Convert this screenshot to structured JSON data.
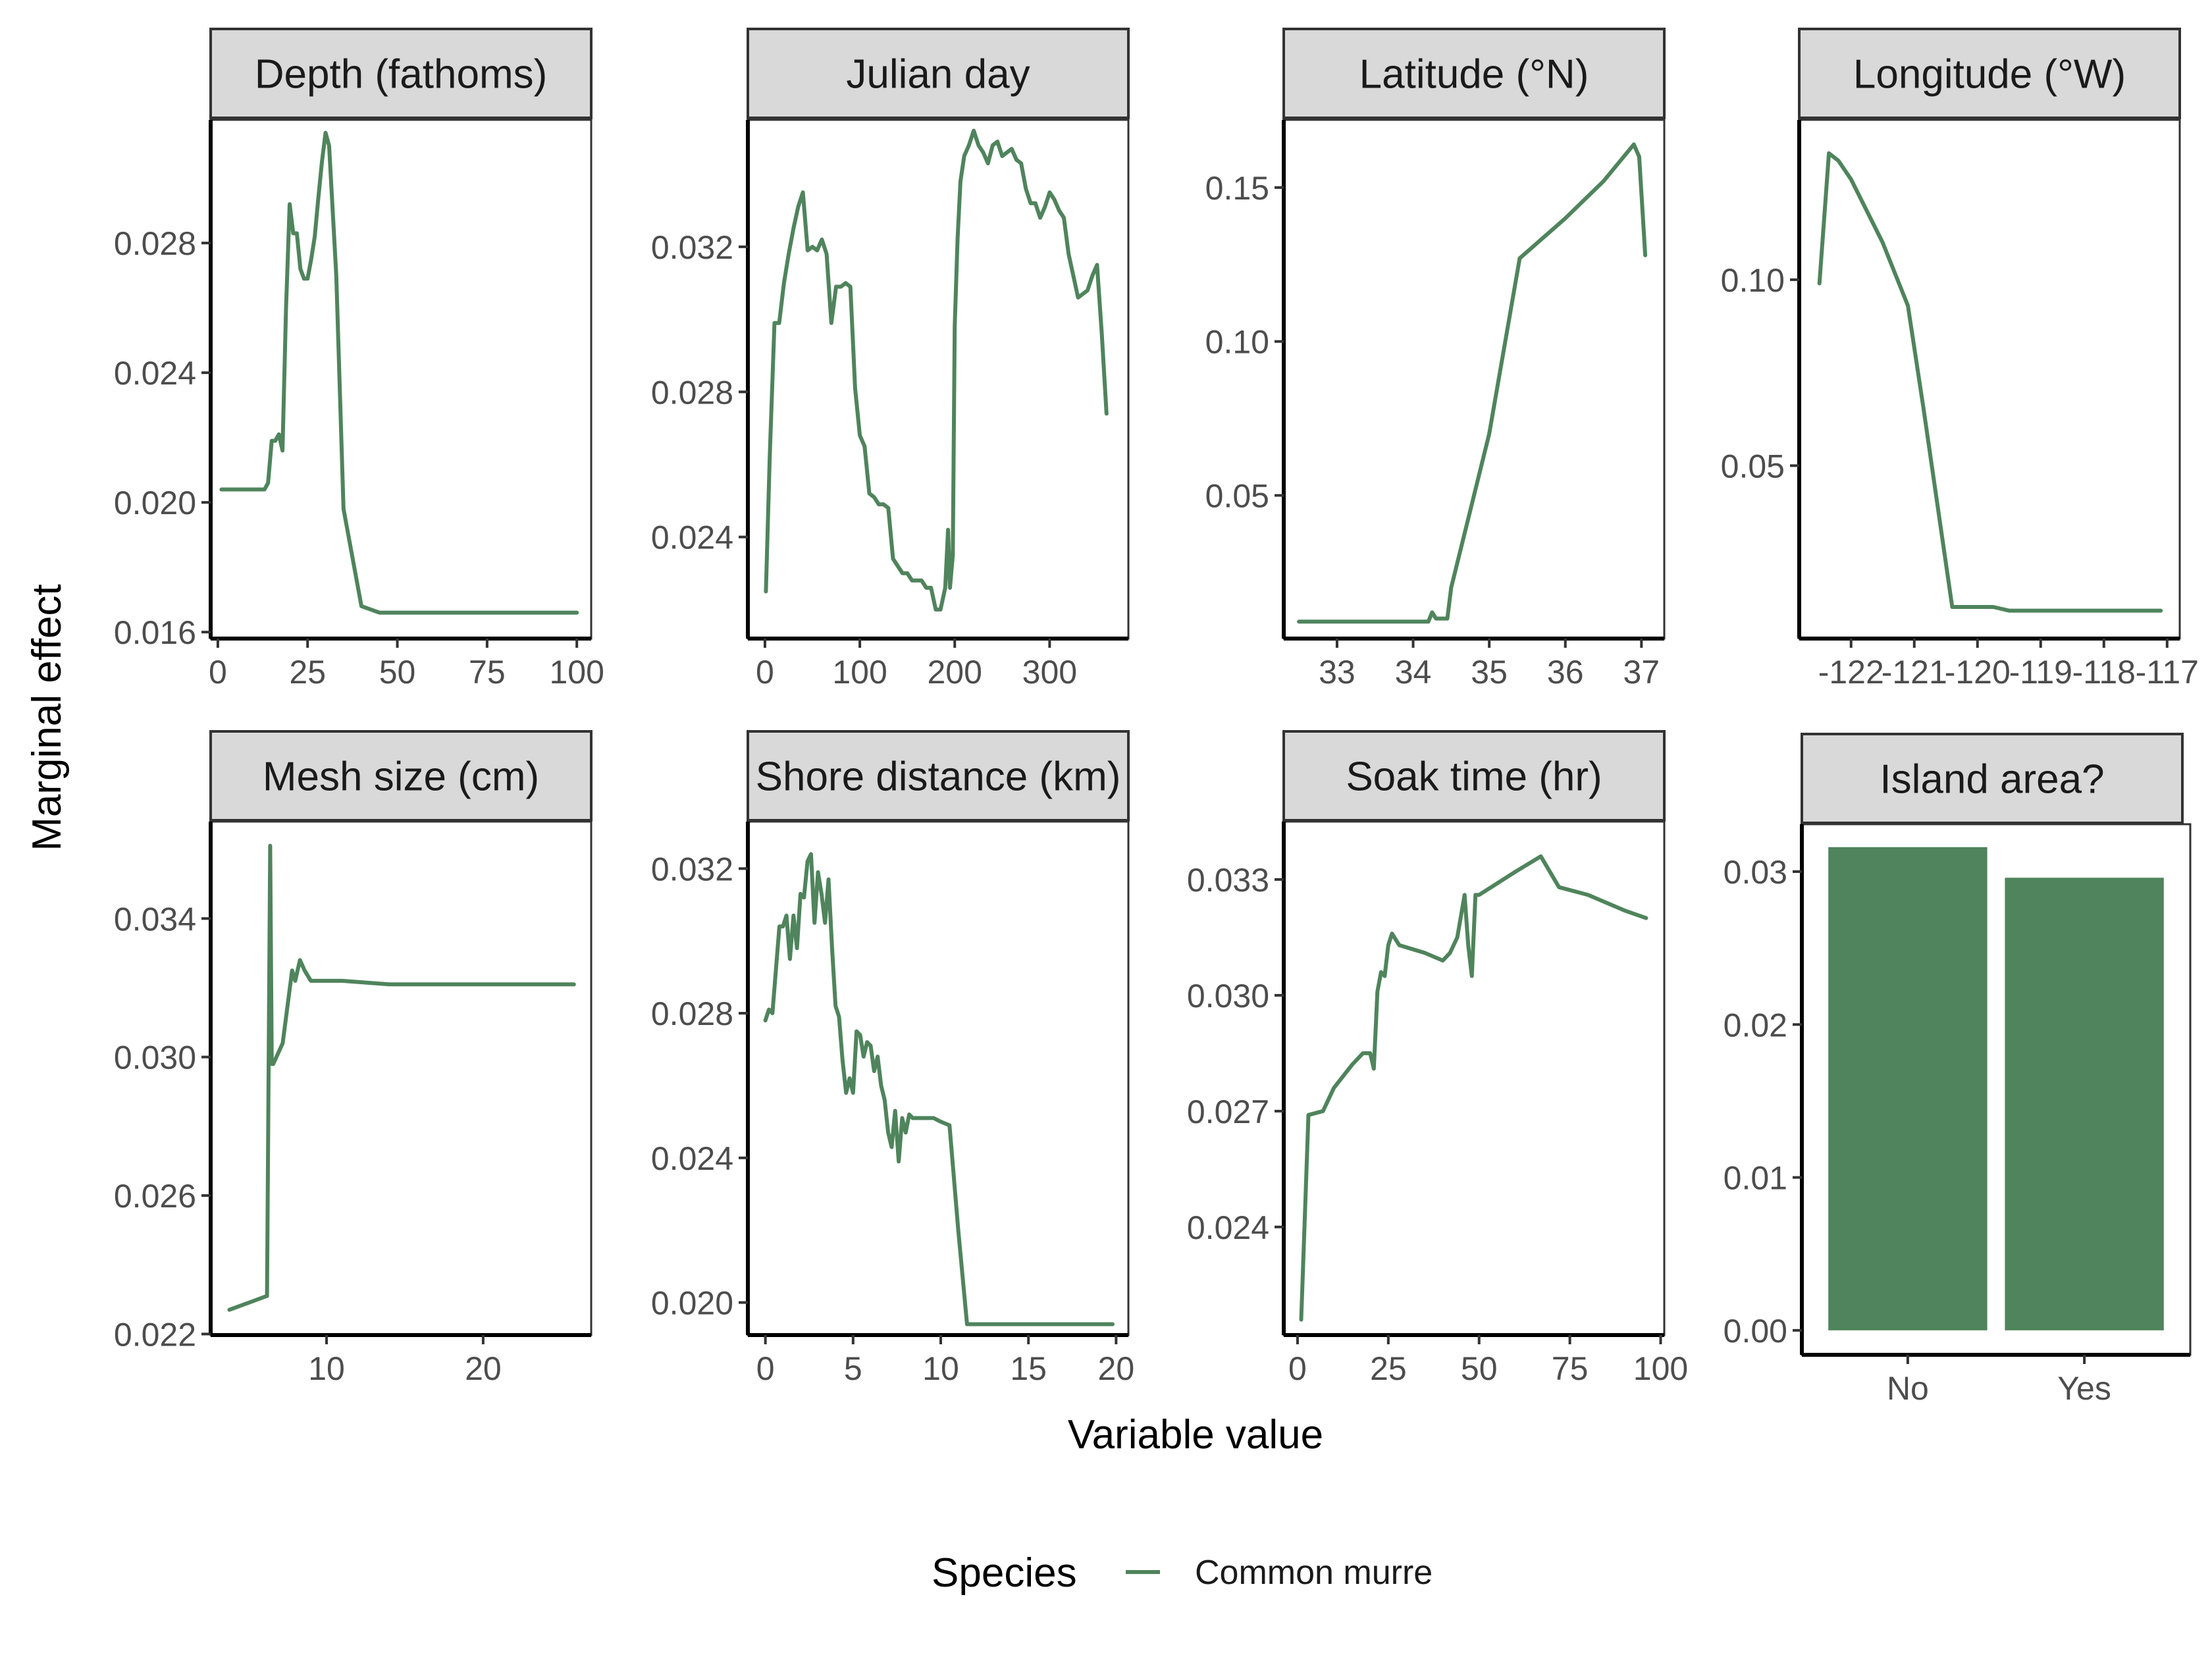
{
  "figure": {
    "x_axis_title": "Variable value",
    "y_axis_title": "Marginal effect",
    "legend": {
      "title": "Species",
      "entries": [
        {
          "label": "Common murre",
          "color": "#4F845C"
        }
      ],
      "position": "bottom"
    }
  },
  "chart_data": [
    {
      "type": "line",
      "title": "Depth (fathoms)",
      "xlim": [
        -2,
        104
      ],
      "ylim": [
        0.0158,
        0.0318
      ],
      "xticks": [
        0,
        25,
        50,
        75,
        100
      ],
      "xtick_labels": [
        "0",
        "25",
        "50",
        "75",
        "100"
      ],
      "yticks": [
        0.016,
        0.02,
        0.024,
        0.028
      ],
      "ytick_labels": [
        "0.016",
        "0.020",
        "0.024",
        "0.028"
      ],
      "grid": false,
      "series": [
        {
          "name": "Common murre",
          "color": "#4F845C",
          "x": [
            1,
            5,
            10,
            13,
            14,
            15,
            16,
            17,
            18,
            19,
            20,
            21,
            22,
            23,
            24,
            25,
            26,
            27,
            28,
            29,
            30,
            31,
            33,
            35,
            40,
            45,
            50,
            60,
            75,
            90,
            100
          ],
          "y": [
            0.0204,
            0.0204,
            0.0204,
            0.0204,
            0.0206,
            0.0219,
            0.0219,
            0.0221,
            0.0216,
            0.026,
            0.0292,
            0.0283,
            0.0283,
            0.0272,
            0.0269,
            0.0269,
            0.0275,
            0.0282,
            0.0294,
            0.0305,
            0.0314,
            0.031,
            0.027,
            0.0198,
            0.0168,
            0.0166,
            0.0166,
            0.0166,
            0.0166,
            0.0166,
            0.0166
          ]
        }
      ]
    },
    {
      "type": "line",
      "title": "Julian day",
      "xlim": [
        -18,
        383
      ],
      "ylim": [
        0.0212,
        0.0355
      ],
      "xticks": [
        0,
        100,
        200,
        300
      ],
      "xtick_labels": [
        "0",
        "100",
        "200",
        "300"
      ],
      "yticks": [
        0.024,
        0.028,
        0.032
      ],
      "ytick_labels": [
        "0.024",
        "0.028",
        "0.032"
      ],
      "grid": false,
      "series": [
        {
          "name": "Common murre",
          "color": "#4F845C",
          "x": [
            1,
            5,
            10,
            15,
            20,
            25,
            30,
            35,
            40,
            45,
            50,
            55,
            60,
            65,
            70,
            75,
            80,
            85,
            90,
            95,
            100,
            105,
            110,
            115,
            120,
            125,
            130,
            135,
            140,
            145,
            150,
            155,
            160,
            165,
            170,
            175,
            180,
            185,
            190,
            193,
            195,
            198,
            200,
            203,
            206,
            210,
            215,
            220,
            225,
            230,
            235,
            240,
            245,
            250,
            255,
            260,
            265,
            270,
            275,
            280,
            285,
            290,
            295,
            300,
            305,
            310,
            315,
            320,
            325,
            330,
            335,
            340,
            345,
            350,
            355,
            360
          ],
          "y": [
            0.0225,
            0.0262,
            0.0299,
            0.0299,
            0.031,
            0.0318,
            0.0325,
            0.0331,
            0.0335,
            0.0319,
            0.032,
            0.0319,
            0.0322,
            0.0318,
            0.0299,
            0.0309,
            0.0309,
            0.031,
            0.0309,
            0.0281,
            0.0268,
            0.0265,
            0.0252,
            0.0251,
            0.0249,
            0.0249,
            0.0248,
            0.0234,
            0.0232,
            0.023,
            0.023,
            0.0228,
            0.0228,
            0.0228,
            0.0226,
            0.0226,
            0.022,
            0.022,
            0.0226,
            0.0242,
            0.0226,
            0.0235,
            0.0298,
            0.0322,
            0.0338,
            0.0345,
            0.0348,
            0.0352,
            0.0348,
            0.0346,
            0.0343,
            0.0348,
            0.0349,
            0.0345,
            0.0346,
            0.0347,
            0.0344,
            0.0343,
            0.0336,
            0.0332,
            0.0332,
            0.0328,
            0.0331,
            0.0335,
            0.0333,
            0.033,
            0.0328,
            0.0318,
            0.0312,
            0.0306,
            0.0307,
            0.0308,
            0.0312,
            0.0315,
            0.0296,
            0.0274
          ]
        }
      ]
    },
    {
      "type": "line",
      "title": "Latitude (°N)",
      "xlim": [
        32.3,
        37.3
      ],
      "ylim": [
        0.0035,
        0.172
      ],
      "xticks": [
        33,
        34,
        35,
        36,
        37
      ],
      "xtick_labels": [
        "33",
        "34",
        "35",
        "36",
        "37"
      ],
      "yticks": [
        0.05,
        0.1,
        0.15
      ],
      "ytick_labels": [
        "0.05",
        "0.10",
        "0.15"
      ],
      "grid": false,
      "series": [
        {
          "name": "Common murre",
          "color": "#4F845C",
          "x": [
            32.5,
            33.0,
            33.5,
            34.0,
            34.2,
            34.25,
            34.3,
            34.45,
            34.5,
            35.0,
            35.4,
            36.0,
            36.5,
            36.7,
            36.9,
            36.97,
            37.05
          ],
          "y": [
            0.009,
            0.009,
            0.009,
            0.009,
            0.009,
            0.012,
            0.01,
            0.01,
            0.02,
            0.07,
            0.127,
            0.14,
            0.152,
            0.158,
            0.164,
            0.16,
            0.128
          ]
        }
      ]
    },
    {
      "type": "line",
      "title": "Longitude (°W)",
      "xlim": [
        -122.82,
        -116.8
      ],
      "ylim": [
        0.0035,
        0.143
      ],
      "xticks": [
        -122,
        -121,
        -120,
        -119,
        -118,
        -117
      ],
      "xtick_labels": [
        "-122",
        "-121",
        "-120",
        "-119",
        "-118",
        "-117"
      ],
      "yticks": [
        0.05,
        0.1
      ],
      "ytick_labels": [
        "0.05",
        "0.10"
      ],
      "grid": false,
      "series": [
        {
          "name": "Common murre",
          "color": "#4F845C",
          "x": [
            -122.5,
            -122.35,
            -122.2,
            -122.0,
            -121.5,
            -121.1,
            -120.85,
            -120.4,
            -120.1,
            -119.75,
            -119.5,
            -118.0,
            -117.1
          ],
          "y": [
            0.099,
            0.134,
            0.132,
            0.127,
            0.11,
            0.093,
            0.065,
            0.012,
            0.012,
            0.012,
            0.011,
            0.011,
            0.011
          ]
        }
      ]
    },
    {
      "type": "line",
      "title": "Mesh size (cm)",
      "xlim": [
        2.6,
        26.9
      ],
      "ylim": [
        0.02197,
        0.0368
      ],
      "xticks": [
        10,
        20
      ],
      "xtick_labels": [
        "10",
        "20"
      ],
      "yticks": [
        0.022,
        0.026,
        0.03,
        0.034
      ],
      "ytick_labels": [
        "0.022",
        "0.026",
        "0.030",
        "0.034"
      ],
      "grid": false,
      "series": [
        {
          "name": "Common murre",
          "color": "#4F845C",
          "x": [
            3.8,
            6.2,
            6.4,
            6.5,
            6.6,
            7.2,
            7.8,
            8.0,
            8.3,
            8.6,
            9.0,
            11.0,
            14.0,
            20.0,
            25.8
          ],
          "y": [
            0.0227,
            0.0231,
            0.0361,
            0.0298,
            0.0298,
            0.0304,
            0.0325,
            0.0322,
            0.0328,
            0.0325,
            0.0322,
            0.0322,
            0.0321,
            0.0321,
            0.0321
          ]
        }
      ]
    },
    {
      "type": "line",
      "title": "Shore distance (km)",
      "xlim": [
        -1.0,
        20.7
      ],
      "ylim": [
        0.0191,
        0.0333
      ],
      "xticks": [
        0,
        5,
        10,
        15,
        20
      ],
      "xtick_labels": [
        "0",
        "5",
        "10",
        "15",
        "20"
      ],
      "yticks": [
        0.02,
        0.024,
        0.028,
        0.032
      ],
      "ytick_labels": [
        "0.020",
        "0.024",
        "0.028",
        "0.032"
      ],
      "grid": false,
      "series": [
        {
          "name": "Common murre",
          "color": "#4F845C",
          "x": [
            0.0,
            0.2,
            0.4,
            0.6,
            0.8,
            1.0,
            1.2,
            1.4,
            1.6,
            1.8,
            2.0,
            2.2,
            2.4,
            2.6,
            2.8,
            3.0,
            3.2,
            3.4,
            3.6,
            3.8,
            4.0,
            4.2,
            4.4,
            4.6,
            4.8,
            5.0,
            5.2,
            5.4,
            5.6,
            5.8,
            6.0,
            6.2,
            6.4,
            6.6,
            6.8,
            7.0,
            7.2,
            7.4,
            7.6,
            7.8,
            8.0,
            8.2,
            8.4,
            8.6,
            8.8,
            9.0,
            9.2,
            9.6,
            10.0,
            10.5,
            11.0,
            11.5,
            12.0,
            14.0,
            16.0,
            18.0,
            19.8
          ],
          "y": [
            0.0278,
            0.0281,
            0.028,
            0.0292,
            0.0304,
            0.0304,
            0.0307,
            0.0295,
            0.0307,
            0.0298,
            0.0313,
            0.0312,
            0.0322,
            0.0324,
            0.0305,
            0.0319,
            0.0313,
            0.0305,
            0.0317,
            0.0298,
            0.0282,
            0.0279,
            0.0267,
            0.0258,
            0.0262,
            0.0258,
            0.0275,
            0.0274,
            0.0268,
            0.0272,
            0.0271,
            0.0264,
            0.0268,
            0.026,
            0.0256,
            0.0247,
            0.0243,
            0.0253,
            0.0239,
            0.0251,
            0.0247,
            0.0252,
            0.0251,
            0.0251,
            0.0251,
            0.0251,
            0.0251,
            0.0251,
            0.025,
            0.0249,
            0.022,
            0.0194,
            0.0194,
            0.0194,
            0.0194,
            0.0194,
            0.0194
          ]
        }
      ]
    },
    {
      "type": "line",
      "title": "Soak time (hr)",
      "xlim": [
        -3.8,
        101.0
      ],
      "ylim": [
        0.0212,
        0.0345
      ],
      "xticks": [
        0,
        25,
        50,
        75,
        100
      ],
      "xtick_labels": [
        "0",
        "25",
        "50",
        "75",
        "100"
      ],
      "yticks": [
        0.024,
        0.027,
        0.03,
        0.033
      ],
      "ytick_labels": [
        "0.024",
        "0.027",
        "0.030",
        "0.033"
      ],
      "grid": false,
      "series": [
        {
          "name": "Common murre",
          "color": "#4F845C",
          "x": [
            1,
            3,
            7,
            10,
            15,
            18,
            20,
            21,
            22,
            23,
            24,
            25,
            26,
            28,
            35,
            40,
            42,
            44,
            46,
            47,
            48,
            49,
            50,
            55,
            60,
            67,
            72,
            80,
            90,
            96
          ],
          "y": [
            0.0216,
            0.0269,
            0.027,
            0.0276,
            0.0282,
            0.0285,
            0.0285,
            0.0281,
            0.0301,
            0.0306,
            0.0305,
            0.0313,
            0.0316,
            0.0313,
            0.0311,
            0.0309,
            0.0311,
            0.0315,
            0.0326,
            0.0313,
            0.0305,
            0.0326,
            0.0326,
            0.0329,
            0.0332,
            0.0336,
            0.0328,
            0.0326,
            0.0322,
            0.032
          ]
        }
      ]
    },
    {
      "type": "bar",
      "title": "Island area?",
      "categories": [
        "No",
        "Yes"
      ],
      "values": [
        0.0316,
        0.0296
      ],
      "ylim": [
        -0.0016,
        0.0331
      ],
      "yticks": [
        0.0,
        0.01,
        0.02,
        0.03
      ],
      "ytick_labels": [
        "0.00",
        "0.01",
        "0.02",
        "0.03"
      ],
      "color": "#4F845C",
      "grid": false
    }
  ]
}
